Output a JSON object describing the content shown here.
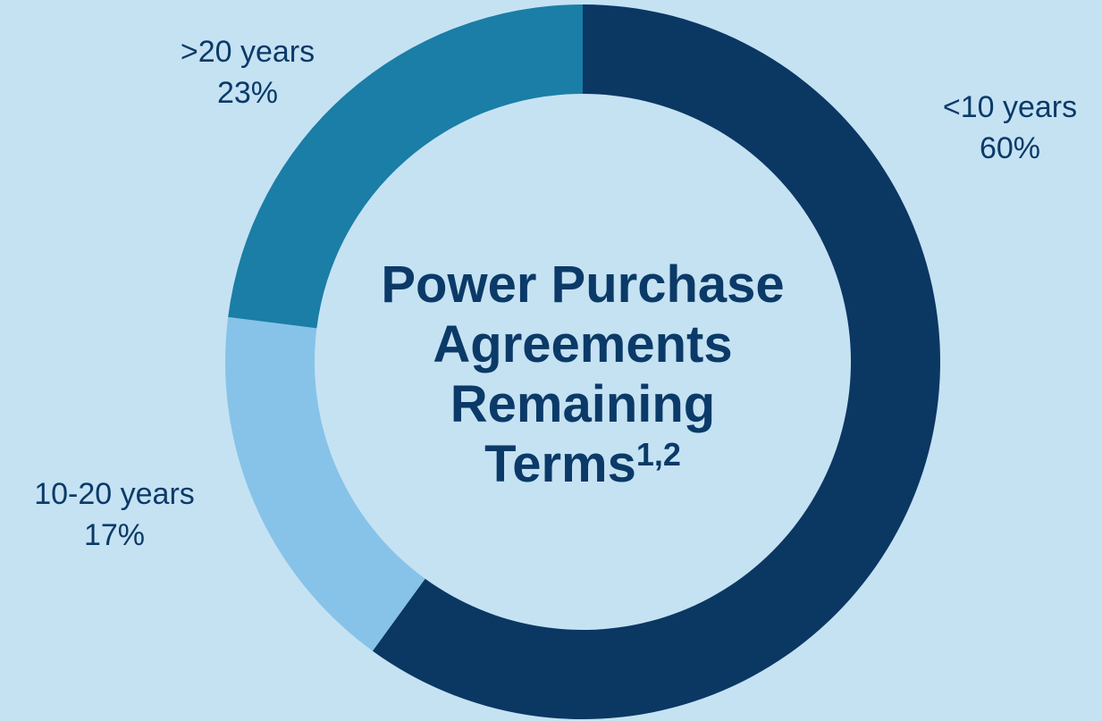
{
  "chart_data": {
    "type": "donut",
    "title": "Power Purchase Agreements Remaining Terms",
    "title_superscript": "1,2",
    "categories": [
      "<10 years",
      "10-20 years",
      ">20 years"
    ],
    "values": [
      60,
      17,
      23
    ],
    "value_labels": [
      "60%",
      "17%",
      "23%"
    ],
    "colors": [
      "#0b3763",
      "#87c3e8",
      "#1a7ea6"
    ]
  }
}
